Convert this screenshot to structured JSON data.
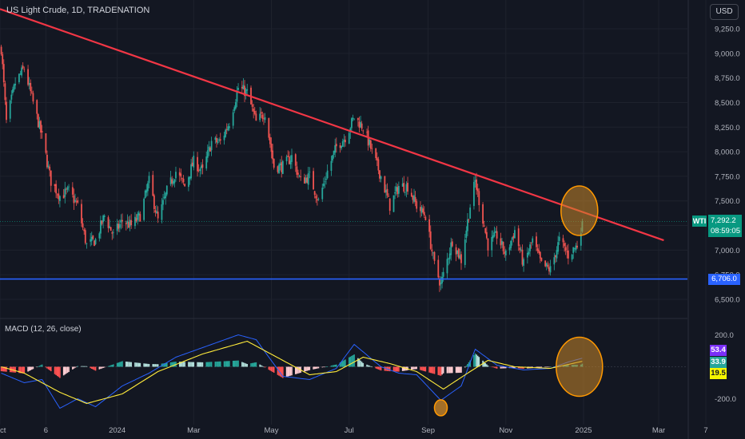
{
  "header": {
    "title": "US Light Crude, 1D, TRADENATION",
    "currency": "USD"
  },
  "price_tag": {
    "symbol": "WTI",
    "price": "7,292.2",
    "countdown": "08:59:05",
    "color": "#089981"
  },
  "level_tag": {
    "value": "6,706.0",
    "color": "#2962ff"
  },
  "macd_values": [
    {
      "label": "53.4",
      "bg": "#7b2ff7",
      "fg": "#ffffff"
    },
    {
      "label": "33.9",
      "bg": "#26a69a",
      "fg": "#ffffff"
    },
    {
      "label": "19.5",
      "bg": "#f5f500",
      "fg": "#131722"
    }
  ],
  "colors": {
    "background": "#131722",
    "up": "#26a69a",
    "down": "#ef5350",
    "trendline": "#f23645",
    "support": "#2962ff",
    "highlight_fill": "#c8862a",
    "highlight_stroke": "#ff9800",
    "macd_line": "#2962ff",
    "signal_line": "#ffeb3b"
  },
  "chart_data": [
    {
      "type": "candlestick",
      "title": "US Light Crude, 1D, TRADENATION",
      "x_tick_labels": [
        "Oct",
        "6",
        "2024",
        "Mar",
        "May",
        "Jul",
        "Sep",
        "Nov",
        "2025",
        "Mar",
        "7"
      ],
      "y_tick_labels": [
        "6,500.0",
        "6,750.0",
        "7,000.0",
        "7,250.0",
        "7,500.0",
        "7,750.0",
        "8,000.0",
        "8,250.0",
        "8,500.0",
        "8,750.0",
        "9,000.0",
        "9,250.0"
      ],
      "ylim": [
        6400,
        9400
      ],
      "close_path": [
        {
          "date": "2023-10-02",
          "close": 9050
        },
        {
          "date": "2023-10-06",
          "close": 8300
        },
        {
          "date": "2023-10-13",
          "close": 8700
        },
        {
          "date": "2023-10-20",
          "close": 8850
        },
        {
          "date": "2023-10-27",
          "close": 8500
        },
        {
          "date": "2023-11-03",
          "close": 8150
        },
        {
          "date": "2023-11-10",
          "close": 7700
        },
        {
          "date": "2023-11-17",
          "close": 7550
        },
        {
          "date": "2023-11-24",
          "close": 7600
        },
        {
          "date": "2023-12-01",
          "close": 7450
        },
        {
          "date": "2023-12-08",
          "close": 7050
        },
        {
          "date": "2023-12-15",
          "close": 7100
        },
        {
          "date": "2023-12-22",
          "close": 7350
        },
        {
          "date": "2023-12-29",
          "close": 7150
        },
        {
          "date": "2024-01-05",
          "close": 7300
        },
        {
          "date": "2024-01-12",
          "close": 7250
        },
        {
          "date": "2024-01-19",
          "close": 7350
        },
        {
          "date": "2024-01-26",
          "close": 7700
        },
        {
          "date": "2024-02-02",
          "close": 7300
        },
        {
          "date": "2024-02-09",
          "close": 7600
        },
        {
          "date": "2024-02-16",
          "close": 7800
        },
        {
          "date": "2024-02-23",
          "close": 7650
        },
        {
          "date": "2024-03-01",
          "close": 7900
        },
        {
          "date": "2024-03-08",
          "close": 7800
        },
        {
          "date": "2024-03-15",
          "close": 8100
        },
        {
          "date": "2024-03-22",
          "close": 8100
        },
        {
          "date": "2024-03-29",
          "close": 8300
        },
        {
          "date": "2024-04-05",
          "close": 8650
        },
        {
          "date": "2024-04-12",
          "close": 8600
        },
        {
          "date": "2024-04-19",
          "close": 8300
        },
        {
          "date": "2024-04-26",
          "close": 8400
        },
        {
          "date": "2024-05-03",
          "close": 7850
        },
        {
          "date": "2024-05-10",
          "close": 7850
        },
        {
          "date": "2024-05-17",
          "close": 7950
        },
        {
          "date": "2024-05-24",
          "close": 7700
        },
        {
          "date": "2024-05-31",
          "close": 7750
        },
        {
          "date": "2024-06-07",
          "close": 7500
        },
        {
          "date": "2024-06-14",
          "close": 7800
        },
        {
          "date": "2024-06-21",
          "close": 8050
        },
        {
          "date": "2024-06-28",
          "close": 8150
        },
        {
          "date": "2024-07-05",
          "close": 8350
        },
        {
          "date": "2024-07-12",
          "close": 8250
        },
        {
          "date": "2024-07-19",
          "close": 8000
        },
        {
          "date": "2024-07-26",
          "close": 7750
        },
        {
          "date": "2024-08-02",
          "close": 7450
        },
        {
          "date": "2024-08-09",
          "close": 7650
        },
        {
          "date": "2024-08-16",
          "close": 7650
        },
        {
          "date": "2024-08-23",
          "close": 7450
        },
        {
          "date": "2024-08-30",
          "close": 7350
        },
        {
          "date": "2024-09-06",
          "close": 6850
        },
        {
          "date": "2024-09-11",
          "close": 6650
        },
        {
          "date": "2024-09-20",
          "close": 7100
        },
        {
          "date": "2024-09-27",
          "close": 6900
        },
        {
          "date": "2024-10-04",
          "close": 7450
        },
        {
          "date": "2024-10-08",
          "close": 7700
        },
        {
          "date": "2024-10-18",
          "close": 7050
        },
        {
          "date": "2024-10-25",
          "close": 7150
        },
        {
          "date": "2024-11-01",
          "close": 6950
        },
        {
          "date": "2024-11-08",
          "close": 7200
        },
        {
          "date": "2024-11-15",
          "close": 6850
        },
        {
          "date": "2024-11-22",
          "close": 7100
        },
        {
          "date": "2024-11-29",
          "close": 6850
        },
        {
          "date": "2024-12-06",
          "close": 6800
        },
        {
          "date": "2024-12-13",
          "close": 7100
        },
        {
          "date": "2024-12-20",
          "close": 6950
        },
        {
          "date": "2024-12-27",
          "close": 7050
        },
        {
          "date": "2024-12-31",
          "close": 7292.2
        }
      ],
      "trendline": {
        "start": {
          "date": "2023-10-01",
          "value": 9450
        },
        "end": {
          "date": "2025-03-05",
          "value": 7100
        }
      },
      "horizontal_level": 6706.0,
      "last_price": 7292.2,
      "annotations": [
        "highlight circle at trendline test near 2025"
      ]
    },
    {
      "type": "macd",
      "title": "MACD (12, 26, close)",
      "y_tick_labels": [
        "200.0",
        "-200.0"
      ],
      "ylim": [
        -300,
        320
      ],
      "macd_path": [
        {
          "date": "2023-10-02",
          "value": -40
        },
        {
          "date": "2023-10-20",
          "value": -100
        },
        {
          "date": "2023-11-03",
          "value": -80
        },
        {
          "date": "2023-11-17",
          "value": -260
        },
        {
          "date": "2023-12-01",
          "value": -200
        },
        {
          "date": "2023-12-15",
          "value": -250
        },
        {
          "date": "2024-01-05",
          "value": -120
        },
        {
          "date": "2024-01-26",
          "value": -40
        },
        {
          "date": "2024-02-16",
          "value": 60
        },
        {
          "date": "2024-03-08",
          "value": 120
        },
        {
          "date": "2024-04-05",
          "value": 200
        },
        {
          "date": "2024-04-19",
          "value": 170
        },
        {
          "date": "2024-05-10",
          "value": -60
        },
        {
          "date": "2024-05-31",
          "value": -80
        },
        {
          "date": "2024-06-21",
          "value": -10
        },
        {
          "date": "2024-07-05",
          "value": 140
        },
        {
          "date": "2024-07-26",
          "value": 0
        },
        {
          "date": "2024-08-09",
          "value": -40
        },
        {
          "date": "2024-08-23",
          "value": -50
        },
        {
          "date": "2024-09-11",
          "value": -210
        },
        {
          "date": "2024-09-27",
          "value": -120
        },
        {
          "date": "2024-10-08",
          "value": 110
        },
        {
          "date": "2024-10-25",
          "value": 10
        },
        {
          "date": "2024-11-15",
          "value": -20
        },
        {
          "date": "2024-12-06",
          "value": -10
        },
        {
          "date": "2024-12-20",
          "value": 30
        },
        {
          "date": "2024-12-31",
          "value": 53.4
        }
      ],
      "signal_path": [
        {
          "date": "2023-10-02",
          "value": 0
        },
        {
          "date": "2023-10-20",
          "value": -40
        },
        {
          "date": "2023-11-17",
          "value": -160
        },
        {
          "date": "2023-12-08",
          "value": -230
        },
        {
          "date": "2024-01-05",
          "value": -170
        },
        {
          "date": "2024-02-02",
          "value": -30
        },
        {
          "date": "2024-03-08",
          "value": 80
        },
        {
          "date": "2024-04-12",
          "value": 160
        },
        {
          "date": "2024-05-10",
          "value": 40
        },
        {
          "date": "2024-05-31",
          "value": -50
        },
        {
          "date": "2024-06-21",
          "value": -30
        },
        {
          "date": "2024-07-12",
          "value": 60
        },
        {
          "date": "2024-08-02",
          "value": 20
        },
        {
          "date": "2024-08-23",
          "value": -30
        },
        {
          "date": "2024-09-13",
          "value": -140
        },
        {
          "date": "2024-10-04",
          "value": -30
        },
        {
          "date": "2024-10-18",
          "value": 40
        },
        {
          "date": "2024-11-08",
          "value": 0
        },
        {
          "date": "2024-12-06",
          "value": -10
        },
        {
          "date": "2024-12-31",
          "value": 33.9
        }
      ],
      "last_values": {
        "macd": 53.4,
        "signal": 33.9,
        "histogram": 19.5
      },
      "annotations": [
        "highlight circle at MACD low near Sep 2024",
        "highlight circle at latest crossover near 2025"
      ]
    }
  ]
}
